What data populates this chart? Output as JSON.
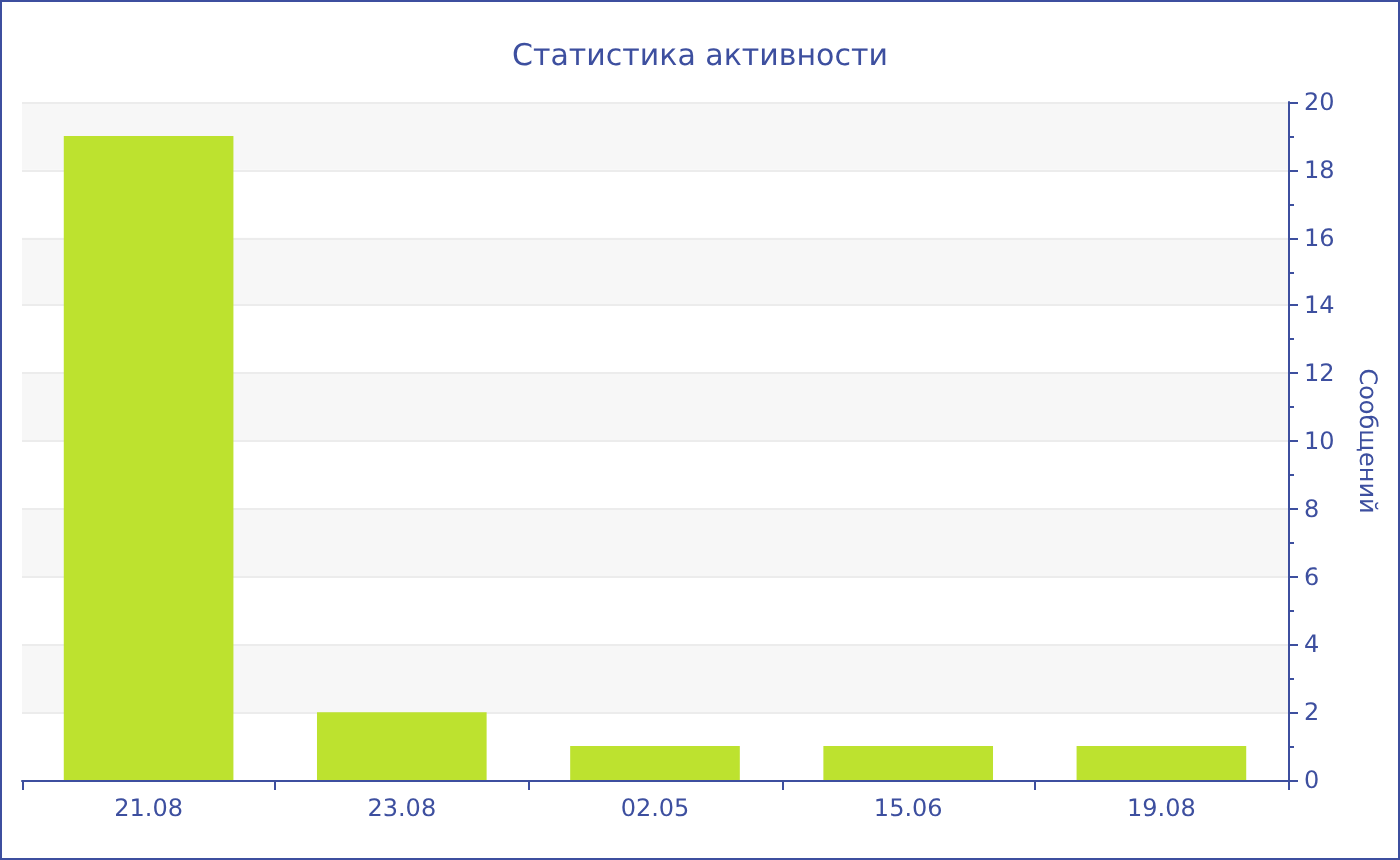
{
  "chart_data": {
    "type": "bar",
    "title": "Статистика активности",
    "ylabel": "Сообщений",
    "categories": [
      "21.08",
      "23.08",
      "02.05",
      "15.06",
      "19.08"
    ],
    "values": [
      19,
      2,
      1,
      1,
      1
    ],
    "color": "#bde22f",
    "ylim": [
      0,
      20
    ],
    "yticks": [
      0,
      2,
      4,
      6,
      8,
      10,
      12,
      14,
      16,
      18,
      20
    ],
    "grid": "y"
  }
}
